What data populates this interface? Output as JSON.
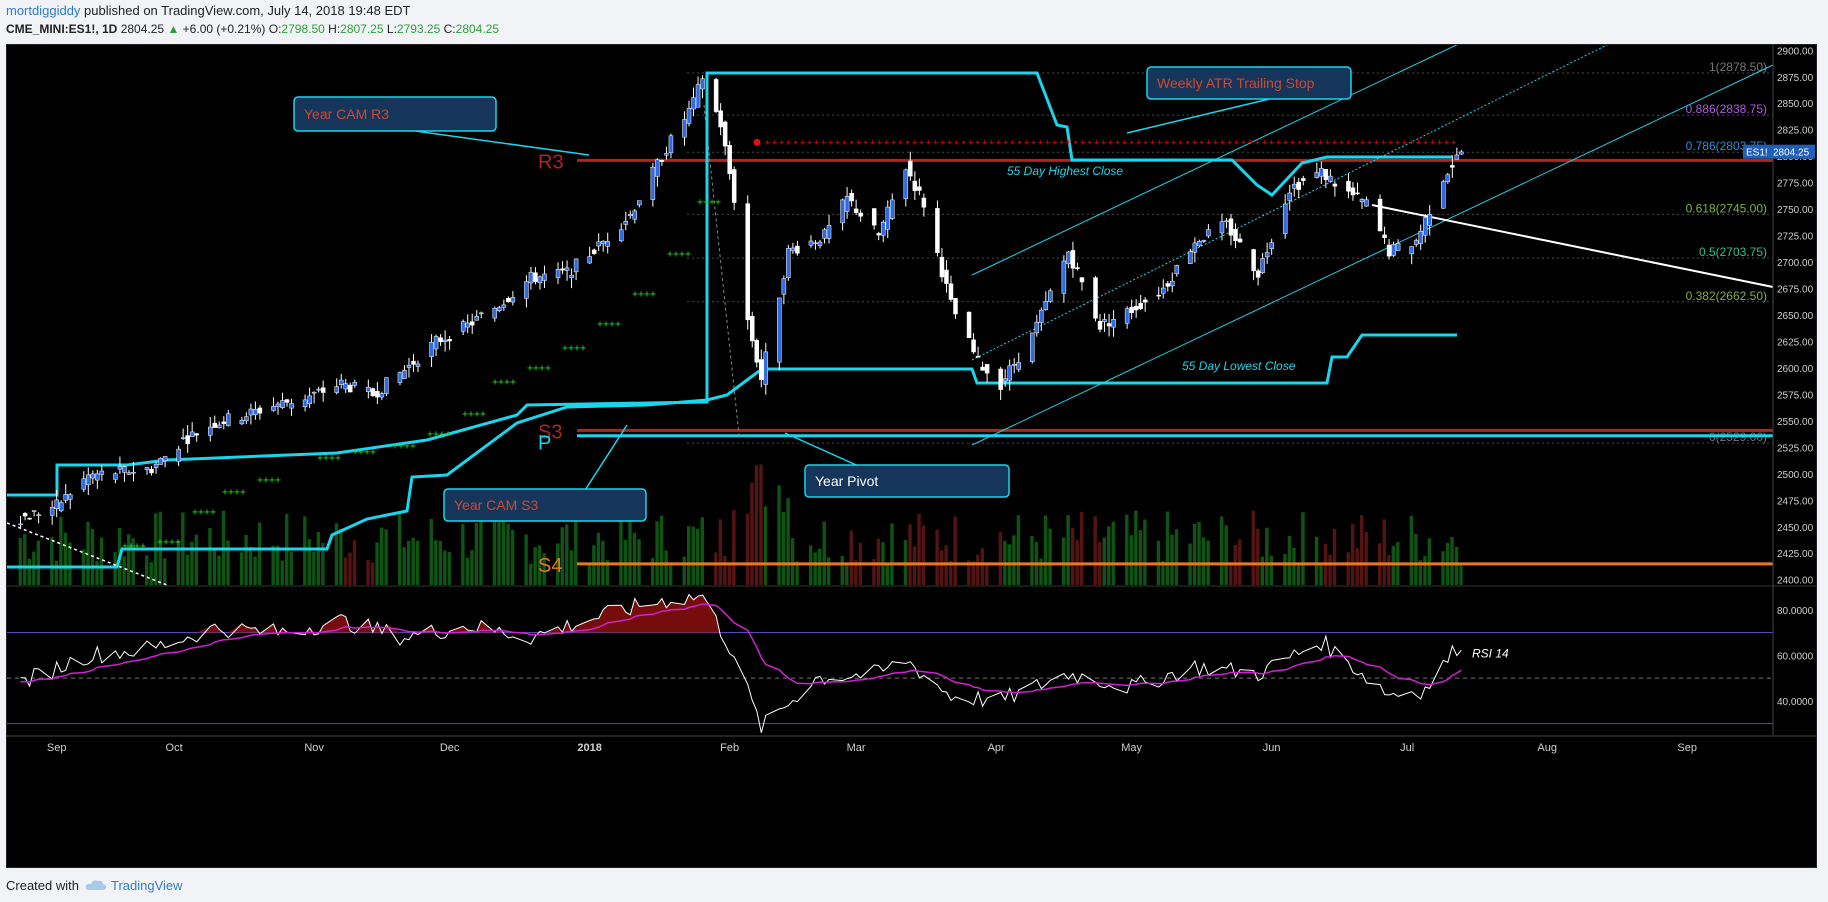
{
  "header": {
    "author": "mortdiggiddy",
    "published": " published on TradingView.com, July 14, 2018 19:48 EDT",
    "symbol": "CME_MINI:ES1!, 1D",
    "last": "2804.25",
    "change": "+6.00 (+0.21%)",
    "o_label": "O:",
    "o": "2798.50",
    "h_label": "H:",
    "h": "2807.25",
    "l_label": "L:",
    "l": "2793.25",
    "c_label": "C:",
    "c": "2804.25"
  },
  "footer": {
    "created": "Created with",
    "brand": "TradingView"
  },
  "colors": {
    "background": "#000000",
    "up_candle": "#2f6be0",
    "down_candle": "#ffffff",
    "cyan": "#19d6ec",
    "r3_red": "#b0261d",
    "s4_orange": "#e57a1f",
    "green_dots": "#22d122",
    "red_dots": "#e01010",
    "rsi_line": "#ffffff",
    "rsi_ma": "#d21fd2",
    "fib_text": "#8aa0b0"
  },
  "chart_data": [
    {
      "type": "candlestick",
      "title": "",
      "x_labels": [
        "Sep",
        "Oct",
        "Nov",
        "Dec",
        "2018",
        "Feb",
        "Mar",
        "Apr",
        "May",
        "Jun",
        "Jul",
        "Aug",
        "Sep"
      ],
      "y_ticks": [
        "2900.00",
        "2875.00",
        "2850.00",
        "2825.00",
        "2800.00",
        "2775.00",
        "2750.00",
        "2725.00",
        "2700.00",
        "2675.00",
        "2650.00",
        "2625.00",
        "2600.00",
        "2575.00",
        "2550.00",
        "2525.00",
        "2500.00",
        "2475.00",
        "2450.00",
        "2425.00",
        "2400.00"
      ],
      "ylim": [
        2395,
        2905
      ],
      "last_price_label": "ES1!",
      "last_price": "2804.25",
      "close_path": [
        [
          "2017-08-28",
          2458
        ],
        [
          "2017-09-05",
          2470
        ],
        [
          "2017-09-12",
          2498
        ],
        [
          "2017-09-19",
          2502
        ],
        [
          "2017-09-26",
          2505
        ],
        [
          "2017-10-03",
          2532
        ],
        [
          "2017-10-10",
          2548
        ],
        [
          "2017-10-17",
          2556
        ],
        [
          "2017-10-24",
          2566
        ],
        [
          "2017-10-31",
          2573
        ],
        [
          "2017-11-07",
          2585
        ],
        [
          "2017-11-14",
          2575
        ],
        [
          "2017-11-21",
          2598
        ],
        [
          "2017-11-28",
          2625
        ],
        [
          "2017-12-05",
          2640
        ],
        [
          "2017-12-12",
          2660
        ],
        [
          "2017-12-19",
          2685
        ],
        [
          "2017-12-27",
          2690
        ],
        [
          "2018-01-03",
          2715
        ],
        [
          "2018-01-10",
          2745
        ],
        [
          "2018-01-17",
          2800
        ],
        [
          "2018-01-24",
          2850
        ],
        [
          "2018-01-26",
          2875
        ],
        [
          "2018-01-30",
          2830
        ],
        [
          "2018-02-02",
          2760
        ],
        [
          "2018-02-05",
          2645
        ],
        [
          "2018-02-08",
          2590
        ],
        [
          "2018-02-14",
          2710
        ],
        [
          "2018-02-22",
          2725
        ],
        [
          "2018-02-27",
          2760
        ],
        [
          "2018-03-06",
          2725
        ],
        [
          "2018-03-12",
          2790
        ],
        [
          "2018-03-16",
          2755
        ],
        [
          "2018-03-22",
          2660
        ],
        [
          "2018-03-28",
          2605
        ],
        [
          "2018-04-02",
          2585
        ],
        [
          "2018-04-09",
          2630
        ],
        [
          "2018-04-17",
          2710
        ],
        [
          "2018-04-24",
          2640
        ],
        [
          "2018-05-01",
          2655
        ],
        [
          "2018-05-08",
          2675
        ],
        [
          "2018-05-15",
          2720
        ],
        [
          "2018-05-22",
          2735
        ],
        [
          "2018-05-29",
          2690
        ],
        [
          "2018-06-05",
          2770
        ],
        [
          "2018-06-12",
          2785
        ],
        [
          "2018-06-18",
          2765
        ],
        [
          "2018-06-22",
          2755
        ],
        [
          "2018-06-27",
          2710
        ],
        [
          "2018-07-03",
          2720
        ],
        [
          "2018-07-09",
          2780
        ],
        [
          "2018-07-13",
          2804.25
        ]
      ],
      "levels": [
        {
          "name": "Year CAM R3",
          "label": "R3",
          "value": 2796
        },
        {
          "name": "Year CAM S3",
          "label": "S3",
          "value": 2541
        },
        {
          "name": "Year Pivot",
          "label": "P",
          "value": 2536
        },
        {
          "name": "S4",
          "label": "S4",
          "value": 2415
        }
      ],
      "fib_levels": [
        {
          "label": "1(2878.50)",
          "value": 2878.5
        },
        {
          "label": "0.886(2838.75)",
          "value": 2838.75
        },
        {
          "label": "0.786(2803.75)",
          "value": 2803.75
        },
        {
          "label": "0.618(2745.00)",
          "value": 2745.0
        },
        {
          "label": "0.5(2703.75)",
          "value": 2703.75
        },
        {
          "label": "0.382(2662.50)",
          "value": 2662.5
        },
        {
          "label": "0(2529.00)",
          "value": 2529.0
        }
      ],
      "weekly_atr_trailing_stop": 2813,
      "annotations": [
        "Year CAM R3",
        "Weekly ATR Trailing Stop",
        "55 Day Highest Close",
        "55 Day Lowest Close",
        "Year CAM S3",
        "Year Pivot"
      ]
    },
    {
      "type": "line",
      "title": "RSI 14",
      "y_ticks": [
        "80.0000",
        "60.0000",
        "40.0000"
      ],
      "ylim": [
        25,
        90
      ],
      "bands": [
        30,
        50,
        70
      ],
      "rsi": [
        [
          "2017-08-28",
          48
        ],
        [
          "2017-09-12",
          60
        ],
        [
          "2017-09-26",
          63
        ],
        [
          "2017-10-10",
          72
        ],
        [
          "2017-10-24",
          70
        ],
        [
          "2017-11-07",
          75
        ],
        [
          "2017-11-21",
          68
        ],
        [
          "2017-12-05",
          73
        ],
        [
          "2017-12-19",
          68
        ],
        [
          "2018-01-03",
          77
        ],
        [
          "2018-01-17",
          84
        ],
        [
          "2018-01-26",
          86
        ],
        [
          "2018-02-02",
          60
        ],
        [
          "2018-02-08",
          28
        ],
        [
          "2018-02-20",
          50
        ],
        [
          "2018-03-06",
          52
        ],
        [
          "2018-03-12",
          58
        ],
        [
          "2018-03-22",
          42
        ],
        [
          "2018-04-02",
          40
        ],
        [
          "2018-04-17",
          52
        ],
        [
          "2018-05-01",
          46
        ],
        [
          "2018-05-15",
          55
        ],
        [
          "2018-05-29",
          52
        ],
        [
          "2018-06-12",
          66
        ],
        [
          "2018-06-27",
          43
        ],
        [
          "2018-07-05",
          45
        ],
        [
          "2018-07-13",
          66
        ]
      ]
    }
  ]
}
